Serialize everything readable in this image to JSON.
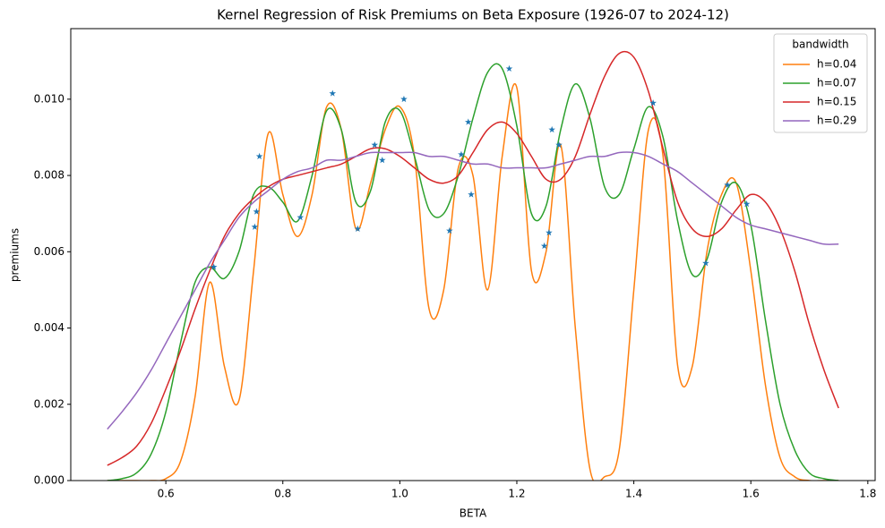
{
  "chart_data": {
    "type": "line",
    "title": "Kernel Regression of Risk Premiums on Beta Exposure (1926-07 to 2024-12)",
    "xlabel": "BETA",
    "ylabel": "premiums",
    "xlim": [
      0.4375,
      1.8125
    ],
    "xticks": [
      0.6,
      0.8,
      {
        "value": 1.0,
        "label": "1.0"
      },
      1.2,
      1.4,
      1.6,
      1.8
    ],
    "ylim": [
      0,
      0.01185
    ],
    "yticks": [
      {
        "value": 0,
        "label": "0.000"
      },
      {
        "value": 0.002,
        "label": "0.002"
      },
      {
        "value": 0.004,
        "label": "0.004"
      },
      {
        "value": 0.006,
        "label": "0.006"
      },
      {
        "value": 0.008,
        "label": "0.008"
      },
      {
        "value": 0.01,
        "label": "0.010"
      }
    ],
    "grid": false,
    "legend_title": "bandwidth",
    "legend_position": "upper right",
    "x": [
      0.5,
      0.525,
      0.55,
      0.575,
      0.6,
      0.625,
      0.65,
      0.675,
      0.7,
      0.725,
      0.75,
      0.775,
      0.8,
      0.825,
      0.85,
      0.875,
      0.9,
      0.925,
      0.95,
      0.975,
      1.0,
      1.025,
      1.05,
      1.075,
      1.1,
      1.125,
      1.15,
      1.175,
      1.2,
      1.225,
      1.25,
      1.275,
      1.3,
      1.325,
      1.35,
      1.375,
      1.4,
      1.425,
      1.45,
      1.475,
      1.5,
      1.525,
      1.55,
      1.575,
      1.6,
      1.625,
      1.65,
      1.675,
      1.7,
      1.725,
      1.75
    ],
    "series": [
      {
        "name": "h=0.04",
        "color": "#ff7f0e",
        "values": [
          0,
          0,
          0,
          0,
          5e-05,
          0.0005,
          0.0022,
          0.0052,
          0.003,
          0.0021,
          0.0055,
          0.0091,
          0.0075,
          0.0064,
          0.0075,
          0.0098,
          0.0092,
          0.0066,
          0.0078,
          0.0092,
          0.0098,
          0.0085,
          0.0045,
          0.005,
          0.0082,
          0.008,
          0.005,
          0.0085,
          0.0103,
          0.0055,
          0.006,
          0.0088,
          0.004,
          0.0003,
          0.0001,
          0.0008,
          0.005,
          0.0092,
          0.0085,
          0.003,
          0.003,
          0.006,
          0.0075,
          0.0078,
          0.0055,
          0.0025,
          0.0006,
          0.0001,
          0,
          0,
          0
        ]
      },
      {
        "name": "h=0.07",
        "color": "#2ca02c",
        "values": [
          0,
          5e-05,
          0.0002,
          0.0007,
          0.0018,
          0.0036,
          0.0052,
          0.0056,
          0.0053,
          0.006,
          0.0075,
          0.0077,
          0.0073,
          0.0068,
          0.008,
          0.0097,
          0.0092,
          0.0073,
          0.0076,
          0.0094,
          0.0097,
          0.0085,
          0.0071,
          0.007,
          0.008,
          0.0095,
          0.0107,
          0.0108,
          0.0093,
          0.007,
          0.0072,
          0.0092,
          0.0104,
          0.0095,
          0.0077,
          0.0075,
          0.0087,
          0.0098,
          0.009,
          0.0068,
          0.0054,
          0.0058,
          0.0073,
          0.0078,
          0.0067,
          0.0042,
          0.002,
          0.0008,
          0.0002,
          5e-05,
          0
        ]
      },
      {
        "name": "h=0.15",
        "color": "#d62728",
        "values": [
          0.0004,
          0.0006,
          0.0009,
          0.0015,
          0.0024,
          0.0034,
          0.0045,
          0.0055,
          0.0064,
          0.007,
          0.0074,
          0.0077,
          0.0079,
          0.008,
          0.0081,
          0.0082,
          0.0083,
          0.0085,
          0.0087,
          0.0087,
          0.0085,
          0.0082,
          0.0079,
          0.0078,
          0.008,
          0.0086,
          0.0092,
          0.0094,
          0.0091,
          0.0085,
          0.0079,
          0.0079,
          0.0085,
          0.0096,
          0.0106,
          0.0112,
          0.0111,
          0.0102,
          0.0087,
          0.0073,
          0.0066,
          0.0064,
          0.0066,
          0.0071,
          0.0075,
          0.0073,
          0.0066,
          0.0055,
          0.0041,
          0.0029,
          0.0019
        ]
      },
      {
        "name": "h=0.29",
        "color": "#9467bd",
        "values": [
          0.00135,
          0.0018,
          0.0023,
          0.0029,
          0.0036,
          0.0043,
          0.005,
          0.0057,
          0.0063,
          0.0069,
          0.0073,
          0.0076,
          0.0079,
          0.0081,
          0.0082,
          0.0084,
          0.0084,
          0.0085,
          0.0086,
          0.0086,
          0.0086,
          0.0086,
          0.0085,
          0.0085,
          0.0084,
          0.0083,
          0.0083,
          0.0082,
          0.0082,
          0.0082,
          0.0082,
          0.0083,
          0.0084,
          0.0085,
          0.0085,
          0.0086,
          0.0086,
          0.0085,
          0.0083,
          0.0081,
          0.0078,
          0.0075,
          0.0072,
          0.0069,
          0.0067,
          0.0066,
          0.0065,
          0.0064,
          0.0063,
          0.0062,
          0.0062
        ]
      }
    ],
    "scatter": {
      "color": "#1f77b4",
      "x": [
        0.682,
        0.752,
        0.755,
        0.76,
        0.83,
        0.885,
        0.928,
        0.957,
        0.97,
        1.007,
        1.085,
        1.105,
        1.117,
        1.122,
        1.187,
        1.247,
        1.255,
        1.26,
        1.272,
        1.433,
        1.523,
        1.56,
        1.593
      ],
      "y": [
        0.0056,
        0.00665,
        0.00705,
        0.0085,
        0.0069,
        0.01015,
        0.0066,
        0.0088,
        0.0084,
        0.01,
        0.00655,
        0.00855,
        0.0094,
        0.0075,
        0.0108,
        0.00615,
        0.0065,
        0.0092,
        0.0088,
        0.0099,
        0.0057,
        0.00775,
        0.00725
      ]
    }
  }
}
